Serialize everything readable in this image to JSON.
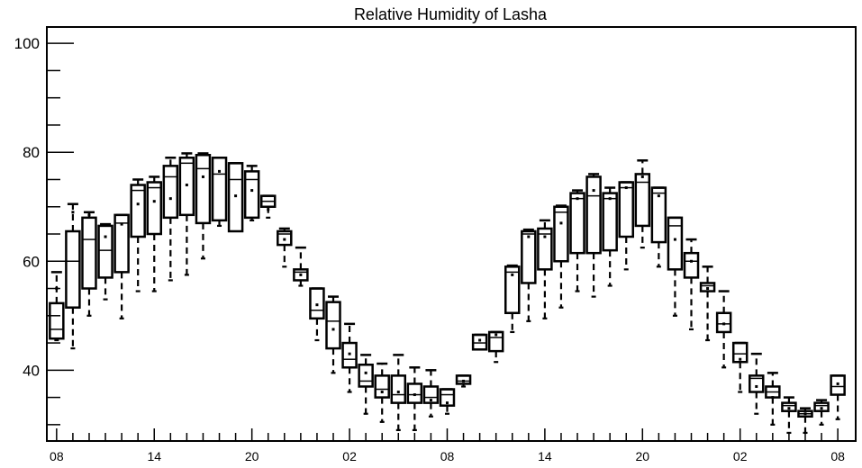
{
  "chart_data": {
    "type": "box",
    "title": "Relative Humidity of Lasha",
    "xlabel": "",
    "ylabel": "",
    "ylim": [
      27,
      103
    ],
    "y_ticks": [
      "100",
      "80",
      "60",
      "40"
    ],
    "x_ticks": [
      "08",
      "14",
      "20",
      "02",
      "08",
      "14",
      "20",
      "02",
      "08"
    ],
    "x_tick_hours": [
      0,
      6,
      12,
      18,
      24,
      30,
      36,
      42,
      48
    ],
    "grid": false,
    "legend": "none",
    "line_color": "#000000",
    "boxes": [
      {
        "hour": 0,
        "whisker_low": 45.5,
        "q1": 45.8,
        "median": 47.5,
        "q3": 52.3,
        "whisker_high": 58.0,
        "mean": 55.0
      },
      {
        "hour": 1,
        "whisker_low": 44.0,
        "q1": 51.5,
        "median": 60.0,
        "q3": 65.5,
        "whisker_high": 70.5,
        "mean": 69.0
      },
      {
        "hour": 2,
        "whisker_low": 50.0,
        "q1": 55.0,
        "median": 64.0,
        "q3": 68.0,
        "whisker_high": 69.0,
        "mean": 68.5
      },
      {
        "hour": 3,
        "whisker_low": 53.0,
        "q1": 57.0,
        "median": 62.0,
        "q3": 66.5,
        "whisker_high": 66.8,
        "mean": 64.5
      },
      {
        "hour": 4,
        "whisker_low": 49.5,
        "q1": 58.0,
        "median": 67.0,
        "q3": 68.5,
        "whisker_high": 68.5,
        "mean": 66.8
      },
      {
        "hour": 5,
        "whisker_low": 54.5,
        "q1": 64.5,
        "median": 73.0,
        "q3": 74.0,
        "whisker_high": 75.0,
        "mean": 70.5
      },
      {
        "hour": 6,
        "whisker_low": 54.5,
        "q1": 65.0,
        "median": 73.5,
        "q3": 74.5,
        "whisker_high": 75.5,
        "mean": 71.0
      },
      {
        "hour": 7,
        "whisker_low": 56.5,
        "q1": 68.0,
        "median": 75.5,
        "q3": 77.5,
        "whisker_high": 79.0,
        "mean": 71.5
      },
      {
        "hour": 8,
        "whisker_low": 57.5,
        "q1": 68.5,
        "median": 78.0,
        "q3": 79.0,
        "whisker_high": 79.8,
        "mean": 74.0
      },
      {
        "hour": 9,
        "whisker_low": 60.5,
        "q1": 67.0,
        "median": 77.0,
        "q3": 79.5,
        "whisker_high": 79.8,
        "mean": 75.5
      },
      {
        "hour": 10,
        "whisker_low": 66.5,
        "q1": 67.5,
        "median": 76.0,
        "q3": 79.0,
        "whisker_high": 79.0,
        "mean": 76.5
      },
      {
        "hour": 11,
        "whisker_low": 65.5,
        "q1": 65.5,
        "median": 75.0,
        "q3": 78.0,
        "whisker_high": 78.0,
        "mean": 72.0
      },
      {
        "hour": 12,
        "whisker_low": 67.5,
        "q1": 68.0,
        "median": 75.0,
        "q3": 76.5,
        "whisker_high": 77.5,
        "mean": 73.0
      },
      {
        "hour": 13,
        "whisker_low": 68.0,
        "q1": 70.0,
        "median": 71.0,
        "q3": 72.0,
        "whisker_high": 72.0,
        "mean": 69.5
      },
      {
        "hour": 14,
        "whisker_low": 59.0,
        "q1": 63.0,
        "median": 65.0,
        "q3": 65.5,
        "whisker_high": 66.0,
        "mean": 64.0
      },
      {
        "hour": 15,
        "whisker_low": 55.5,
        "q1": 56.5,
        "median": 58.0,
        "q3": 58.5,
        "whisker_high": 62.5,
        "mean": 57.5
      },
      {
        "hour": 16,
        "whisker_low": 45.5,
        "q1": 49.5,
        "median": 51.0,
        "q3": 55.0,
        "whisker_high": 55.0,
        "mean": 52.0
      },
      {
        "hour": 17,
        "whisker_low": 39.5,
        "q1": 44.0,
        "median": 49.0,
        "q3": 52.5,
        "whisker_high": 53.5,
        "mean": 47.5
      },
      {
        "hour": 18,
        "whisker_low": 36.0,
        "q1": 40.5,
        "median": 42.0,
        "q3": 45.0,
        "whisker_high": 48.5,
        "mean": 43.0
      },
      {
        "hour": 19,
        "whisker_low": 32.0,
        "q1": 37.0,
        "median": 38.0,
        "q3": 41.0,
        "whisker_high": 42.8,
        "mean": 39.5
      },
      {
        "hour": 20,
        "whisker_low": 30.5,
        "q1": 35.0,
        "median": 36.5,
        "q3": 39.0,
        "whisker_high": 41.2,
        "mean": 36.0
      },
      {
        "hour": 21,
        "whisker_low": 29.0,
        "q1": 34.0,
        "median": 35.5,
        "q3": 39.0,
        "whisker_high": 42.8,
        "mean": 36.0
      },
      {
        "hour": 22,
        "whisker_low": 29.0,
        "q1": 34.0,
        "median": 35.5,
        "q3": 37.5,
        "whisker_high": 40.5,
        "mean": 35.5
      },
      {
        "hour": 23,
        "whisker_low": 31.5,
        "q1": 34.0,
        "median": 35.0,
        "q3": 37.0,
        "whisker_high": 40.0,
        "mean": 34.5
      },
      {
        "hour": 24,
        "whisker_low": 32.0,
        "q1": 33.5,
        "median": 35.5,
        "q3": 36.5,
        "whisker_high": 36.5,
        "mean": 34.0
      },
      {
        "hour": 25,
        "whisker_low": 37.0,
        "q1": 37.5,
        "median": 38.0,
        "q3": 39.0,
        "whisker_high": 39.0,
        "mean": 38.0
      },
      {
        "hour": 26,
        "whisker_low": 43.8,
        "q1": 43.8,
        "median": 45.0,
        "q3": 46.5,
        "whisker_high": 46.5,
        "mean": 45.5
      },
      {
        "hour": 27,
        "whisker_low": 41.5,
        "q1": 43.5,
        "median": 46.0,
        "q3": 47.0,
        "whisker_high": 47.0,
        "mean": 46.5
      },
      {
        "hour": 28,
        "whisker_low": 47.0,
        "q1": 50.5,
        "median": 58.0,
        "q3": 59.0,
        "whisker_high": 59.2,
        "mean": 57.5
      },
      {
        "hour": 29,
        "whisker_low": 49.0,
        "q1": 56.0,
        "median": 65.0,
        "q3": 65.5,
        "whisker_high": 65.8,
        "mean": 64.5
      },
      {
        "hour": 30,
        "whisker_low": 49.5,
        "q1": 58.5,
        "median": 65.0,
        "q3": 66.0,
        "whisker_high": 67.5,
        "mean": 64.5
      },
      {
        "hour": 31,
        "whisker_low": 51.5,
        "q1": 60.0,
        "median": 69.0,
        "q3": 70.0,
        "whisker_high": 70.2,
        "mean": 67.0
      },
      {
        "hour": 32,
        "whisker_low": 54.5,
        "q1": 61.5,
        "median": 71.5,
        "q3": 72.5,
        "whisker_high": 73.0,
        "mean": 71.5
      },
      {
        "hour": 33,
        "whisker_low": 53.5,
        "q1": 61.5,
        "median": 72.0,
        "q3": 75.5,
        "whisker_high": 76.0,
        "mean": 73.0
      },
      {
        "hour": 34,
        "whisker_low": 55.5,
        "q1": 62.0,
        "median": 71.5,
        "q3": 72.5,
        "whisker_high": 73.5,
        "mean": 71.5
      },
      {
        "hour": 35,
        "whisker_low": 58.5,
        "q1": 64.5,
        "median": 73.5,
        "q3": 74.5,
        "whisker_high": 74.5,
        "mean": 73.5
      },
      {
        "hour": 36,
        "whisker_low": 62.5,
        "q1": 66.5,
        "median": 74.5,
        "q3": 76.0,
        "whisker_high": 78.5,
        "mean": 75.5
      },
      {
        "hour": 37,
        "whisker_low": 59.0,
        "q1": 63.5,
        "median": 72.5,
        "q3": 73.5,
        "whisker_high": 73.5,
        "mean": 72.0
      },
      {
        "hour": 38,
        "whisker_low": 50.0,
        "q1": 58.5,
        "median": 66.5,
        "q3": 68.0,
        "whisker_high": 68.0,
        "mean": 64.0
      },
      {
        "hour": 39,
        "whisker_low": 47.5,
        "q1": 57.0,
        "median": 60.0,
        "q3": 61.5,
        "whisker_high": 64.0,
        "mean": 60.0
      },
      {
        "hour": 40,
        "whisker_low": 45.5,
        "q1": 54.5,
        "median": 55.5,
        "q3": 56.0,
        "whisker_high": 59.0,
        "mean": 55.0
      },
      {
        "hour": 41,
        "whisker_low": 40.5,
        "q1": 47.0,
        "median": 48.5,
        "q3": 50.5,
        "whisker_high": 54.5,
        "mean": 48.5
      },
      {
        "hour": 42,
        "whisker_low": 36.0,
        "q1": 41.5,
        "median": 43.0,
        "q3": 45.0,
        "whisker_high": 45.0,
        "mean": 42.0
      },
      {
        "hour": 43,
        "whisker_low": 32.0,
        "q1": 36.0,
        "median": 38.5,
        "q3": 39.0,
        "whisker_high": 43.0,
        "mean": 37.0
      },
      {
        "hour": 44,
        "whisker_low": 30.0,
        "q1": 35.0,
        "median": 36.0,
        "q3": 37.0,
        "whisker_high": 39.5,
        "mean": 35.0
      },
      {
        "hour": 45,
        "whisker_low": 28.5,
        "q1": 32.5,
        "median": 33.5,
        "q3": 34.0,
        "whisker_high": 35.0,
        "mean": 33.0
      },
      {
        "hour": 46,
        "whisker_low": 28.5,
        "q1": 31.5,
        "median": 32.0,
        "q3": 32.5,
        "whisker_high": 33.0,
        "mean": 32.0
      },
      {
        "hour": 47,
        "whisker_low": 30.0,
        "q1": 32.5,
        "median": 33.5,
        "q3": 34.0,
        "whisker_high": 34.5,
        "mean": 33.0
      },
      {
        "hour": 48,
        "whisker_low": 31.0,
        "q1": 35.5,
        "median": 37.0,
        "q3": 39.0,
        "whisker_high": 39.0,
        "mean": 37.5
      }
    ]
  }
}
